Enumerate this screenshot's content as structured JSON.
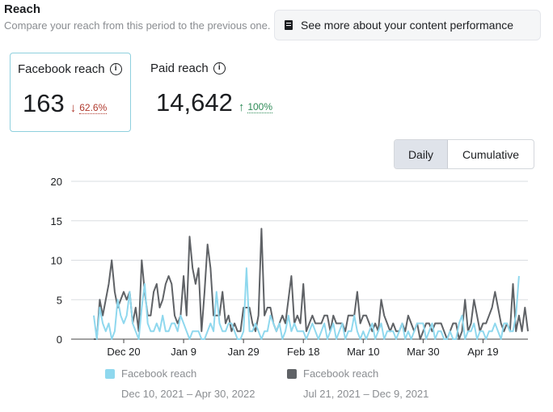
{
  "header": {
    "title": "Reach",
    "subtitle": "Compare your reach from this period to the previous one.",
    "perf_button": "See more about your content performance"
  },
  "metrics": [
    {
      "label": "Facebook reach",
      "value": "163",
      "delta_arrow": "↓",
      "delta": "62.6%",
      "direction": "down",
      "selected": true
    },
    {
      "label": "Paid reach",
      "value": "14,642",
      "delta_arrow": "↑",
      "delta": "100%",
      "direction": "up",
      "selected": false
    }
  ],
  "toggle": {
    "daily": "Daily",
    "cumulative": "Cumulative",
    "active": "Daily"
  },
  "legend": [
    {
      "name": "Facebook reach",
      "range": "Dec 10, 2021 – Apr 30, 2022",
      "color": "#8fd8ee"
    },
    {
      "name": "Facebook reach",
      "range": "Jul 21, 2021 – Dec 9, 2021",
      "color": "#5f6266"
    }
  ],
  "chart_data": {
    "type": "line",
    "ylim": [
      0,
      20
    ],
    "yticks": [
      "0",
      "5",
      "10",
      "15",
      "20"
    ],
    "xtick_labels": [
      "Dec 20",
      "Jan 9",
      "Jan 29",
      "Feb 18",
      "Mar 10",
      "Mar 30",
      "Apr 19"
    ],
    "xtick_index": [
      10,
      30,
      50,
      70,
      90,
      110,
      130
    ],
    "series": [
      {
        "name": "Facebook reach (Dec 10, 2021 – Apr 30, 2022)",
        "color": "#8fd8ee",
        "values": [
          3,
          0,
          4,
          2,
          1,
          2,
          0,
          1,
          5,
          3,
          2,
          3,
          6,
          2,
          1,
          0,
          4,
          7,
          2,
          1,
          1,
          2,
          1,
          3,
          1,
          1,
          2,
          2,
          1,
          3,
          2,
          1,
          0,
          1,
          1,
          1,
          0,
          0,
          1,
          2,
          1,
          6,
          2,
          1,
          1,
          2,
          2,
          1,
          0,
          0,
          1,
          9,
          1,
          1,
          2,
          1,
          0,
          1,
          1,
          3,
          2,
          1,
          2,
          0,
          1,
          3,
          1,
          2,
          1,
          1,
          1,
          0,
          1,
          2,
          1,
          0,
          1,
          2,
          0,
          1,
          2,
          0,
          1,
          2,
          0,
          1,
          1,
          3,
          1,
          0,
          1,
          0,
          1,
          2,
          0,
          1,
          2,
          0,
          1,
          1,
          1,
          0,
          1,
          2,
          0,
          1,
          0,
          1,
          2,
          2,
          2,
          0,
          1,
          2,
          0,
          1,
          1,
          0,
          0,
          1,
          0,
          0,
          2,
          3,
          0,
          1,
          1,
          2,
          0,
          1,
          1,
          0,
          1,
          1,
          2,
          1,
          0,
          2,
          2,
          1,
          1,
          3,
          8
        ]
      },
      {
        "name": "Facebook reach (Jul 21, 2021 – Dec 9, 2021)",
        "color": "#5f6266",
        "values": [
          0,
          0,
          5,
          3,
          5,
          7,
          10,
          6,
          4,
          5,
          6,
          5,
          6,
          2,
          4,
          1,
          10,
          6,
          3,
          3,
          6,
          7,
          4,
          5,
          7,
          8,
          7,
          3,
          2,
          3,
          8,
          3,
          13,
          9,
          7,
          9,
          1,
          6,
          12,
          9,
          3,
          3,
          3,
          6,
          2,
          3,
          1,
          2,
          1,
          1,
          4,
          4,
          4,
          2,
          1,
          3,
          14,
          3,
          4,
          4,
          2,
          1,
          2,
          3,
          2,
          5,
          8,
          2,
          3,
          2,
          7,
          1,
          2,
          3,
          2,
          2,
          2,
          3,
          3,
          1,
          3,
          2,
          2,
          2,
          1,
          3,
          3,
          3,
          6,
          2,
          3,
          3,
          2,
          1,
          2,
          1,
          5,
          3,
          2,
          1,
          2,
          1,
          1,
          2,
          1,
          3,
          2,
          1,
          2,
          0,
          1,
          2,
          2,
          1,
          2,
          2,
          2,
          1,
          0,
          1,
          2,
          2,
          0,
          1,
          5,
          1,
          2,
          5,
          3,
          1,
          2,
          2,
          3,
          4,
          6,
          4,
          2,
          1,
          2,
          1,
          7,
          1,
          3,
          1,
          4,
          1
        ]
      }
    ]
  }
}
